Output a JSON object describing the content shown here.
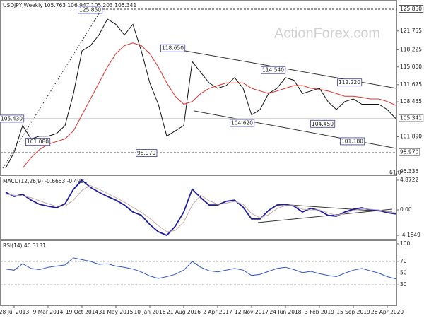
{
  "chart_data": [
    {
      "type": "line",
      "title": "USDJPY,Weekly",
      "subtitle": "105.763 106.947 105.203 105.341",
      "watermark": "ActionForex.com",
      "series": [
        {
          "color": "#111111",
          "values": [
            96,
            99,
            104,
            101.5,
            102,
            102,
            102.5,
            104,
            110,
            118,
            119,
            121,
            124,
            123,
            121,
            123,
            118,
            112,
            108,
            102,
            103,
            104,
            116,
            114,
            112,
            111,
            111.5,
            113,
            111,
            106,
            107,
            110,
            111,
            113,
            112.5,
            110,
            110.5,
            111,
            108.5,
            107,
            108.5,
            109,
            108,
            108,
            108,
            107,
            105.341
          ]
        },
        {
          "color": "#e0302c",
          "values": [
            null,
            null,
            96,
            98,
            99.5,
            100.5,
            101,
            101.5,
            103,
            106,
            109,
            112,
            115,
            117.5,
            119,
            119.5,
            119,
            117.5,
            115,
            112,
            109.5,
            108,
            108.5,
            110,
            111,
            111.5,
            112,
            112,
            112,
            111,
            110.5,
            110,
            110.5,
            111,
            111.5,
            111.5,
            111,
            110.8,
            110.5,
            110,
            109.5,
            109.5,
            109.3,
            109,
            109,
            108.5,
            107.8
          ]
        }
      ],
      "ylim": [
        94.67,
        127.57
      ],
      "yticks": [
        121.755,
        118.225,
        {
          "value": 115,
          "label": "115.000"
        },
        111.675,
        108.455,
        {
          "value": 101.89,
          "label": "101.890"
        },
        95.335
      ],
      "levels": [
        {
          "value": 125.85,
          "label": "125.850"
        },
        {
          "value": 98.97,
          "label": "98.970"
        }
      ],
      "last": {
        "value": 105.341,
        "label": "105.341"
      },
      "annotations": [
        {
          "value": 125.85,
          "label": "125.850"
        },
        {
          "value": 118.65,
          "label": "118.650"
        },
        {
          "value": 114.54,
          "label": "114.540"
        },
        {
          "value": 112.22,
          "label": "112.220"
        },
        {
          "value": 105.43,
          "label": "105.430"
        },
        {
          "value": 101.08,
          "label": "101.080"
        },
        {
          "value": 104.62,
          "label": "104.620"
        },
        {
          "value": 104.45,
          "label": "104.450"
        },
        {
          "value": 101.18,
          "label": "101.180"
        },
        {
          "value": 98.97,
          "label": "98.970"
        },
        {
          "value": 95.335,
          "label": "61.8"
        }
      ],
      "grid": false
    },
    {
      "type": "line",
      "title": "MACD(12,26,9) -0.6653 -0.4981",
      "series": [
        {
          "color": "#1c1c9c",
          "values": [
            2.9,
            2.2,
            2.55,
            1.6,
            0.9,
            0.6,
            0.35,
            1.0,
            3.4,
            4.87,
            3.7,
            2.9,
            2.2,
            1.6,
            0.8,
            -0.35,
            -0.9,
            -2.4,
            -3.6,
            -4.18,
            -2.7,
            -0.35,
            3.4,
            2.0,
            0.8,
            0.8,
            1.4,
            1.6,
            0.45,
            -1.5,
            -1.5,
            -0.1,
            0.8,
            0.9,
            0.6,
            -0.35,
            0.25,
            -0.1,
            -0.9,
            -1.05,
            -0.35,
            0.1,
            0.35,
            0,
            -0.1,
            -0.45,
            -0.67
          ]
        },
        {
          "color": "#c8a8a8",
          "values": [
            2.6,
            2.4,
            2.3,
            2.0,
            1.5,
            1.0,
            0.6,
            0.6,
            1.6,
            3.2,
            4.0,
            3.4,
            2.7,
            2.0,
            1.3,
            0.4,
            -0.4,
            -1.4,
            -2.6,
            -3.6,
            -3.4,
            -2.0,
            0.8,
            2.4,
            1.5,
            0.9,
            1.1,
            1.4,
            0.9,
            -0.6,
            -1.3,
            -0.8,
            0.2,
            0.7,
            0.7,
            0.1,
            0.0,
            0.0,
            -0.5,
            -0.9,
            -0.6,
            -0.1,
            0.2,
            0.1,
            0.0,
            -0.3,
            -0.5
          ]
        }
      ],
      "ylim": [
        -4.76,
        5.45
      ],
      "yticks": [
        4.8722,
        {
          "value": 0,
          "label": "0.00"
        },
        -4.1849
      ],
      "grid": false
    },
    {
      "type": "line",
      "title": "RSI(14) 40.3131",
      "categories": [
        null,
        "28 Jul 2013",
        null,
        null,
        null,
        "9 Mar 2014",
        null,
        null,
        null,
        "19 Oct 2014",
        null,
        null,
        null,
        "31 May 2015",
        null,
        null,
        null,
        "10 Jan 2016",
        null,
        null,
        null,
        "21 Aug 2016",
        null,
        null,
        null,
        "2 Apr 2017",
        null,
        null,
        null,
        "12 Nov 2017",
        null,
        null,
        null,
        "24 Jun 2018",
        null,
        null,
        null,
        "3 Feb 2019",
        null,
        null,
        null,
        "15 Sep 2019",
        null,
        null,
        null,
        "26 Apr 2020",
        null
      ],
      "series": [
        {
          "color": "#2f55c8",
          "values": [
            57,
            55,
            66,
            58,
            56,
            60,
            62,
            64,
            76,
            73,
            70,
            65,
            66,
            62,
            60,
            57,
            52,
            45,
            41,
            44,
            48,
            55,
            70,
            60,
            54,
            52,
            55,
            58,
            55,
            46,
            48,
            53,
            58,
            60,
            56,
            51,
            53,
            49,
            46,
            44,
            50,
            55,
            58,
            54,
            50,
            44,
            40.3
          ]
        }
      ],
      "ylim": [
        -4.8,
        106
      ],
      "yticks": [
        100,
        70,
        50,
        30
      ],
      "levels": [
        70,
        30
      ],
      "grid": false
    }
  ]
}
